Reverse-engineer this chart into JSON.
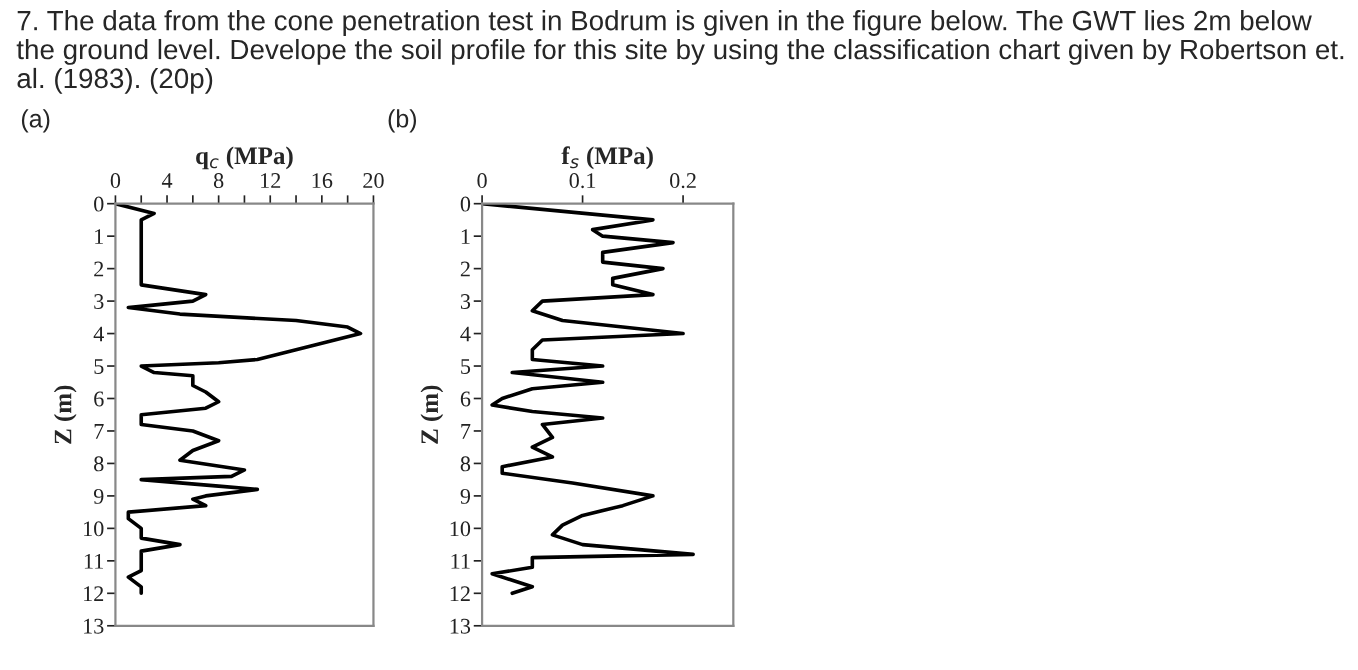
{
  "chart_data": [
    {
      "type": "line",
      "orientation": "horizontal",
      "title": "7. The data from the cone penetration test in Bodrum is given in the figure below. The GWT lies 2m below the ground level. Develope the soil profile for this site by using the classification chart given by Robertson et. al. (1983). (20p)",
      "annotations": [
        "(a)"
      ],
      "x2label": "q$_{c}$ (MPa)",
      "ylabel": "Z (m)",
      "x2lim": [
        0,
        20
      ],
      "x2ticks": [
        0,
        {
          "value": 2,
          "label": null
        },
        4,
        {
          "value": 6,
          "label": null
        },
        8,
        {
          "value": 10,
          "label": null
        },
        12,
        {
          "value": 14,
          "label": null
        },
        16,
        {
          "value": 18,
          "label": null
        },
        20
      ],
      "ylim": [
        13,
        0
      ],
      "yticks": [
        0,
        1,
        2,
        3,
        4,
        5,
        6,
        7,
        8,
        9,
        10,
        11,
        12,
        13
      ],
      "series": [
        {
          "color": "#000000",
          "axis": "x2",
          "x": [
            0,
            0.3,
            0.5,
            2.5,
            2.8,
            3.0,
            3.2,
            3.4,
            3.6,
            3.8,
            4.0,
            4.2,
            4.5,
            4.8,
            4.9,
            5.0,
            5.2,
            5.3,
            5.6,
            5.8,
            6.1,
            6.3,
            6.5,
            6.8,
            7.0,
            7.3,
            7.6,
            7.9,
            8.2,
            8.4,
            8.5,
            8.7,
            8.8,
            9.0,
            9.1,
            9.3,
            9.5,
            9.7,
            10.0,
            10.3,
            10.5,
            10.7,
            11.0,
            11.3,
            11.5,
            11.8,
            12.0
          ],
          "values": [
            0,
            3,
            2,
            2,
            7,
            6,
            1,
            5,
            14,
            18,
            19,
            17,
            14,
            11,
            8,
            2,
            3,
            6,
            6,
            7,
            8,
            7,
            2,
            2,
            6,
            8,
            6,
            5,
            10,
            9,
            2,
            8,
            11,
            7,
            6,
            7,
            1,
            1,
            2,
            2,
            5,
            2,
            2,
            2,
            1,
            2,
            2
          ]
        }
      ]
    },
    {
      "type": "line",
      "orientation": "horizontal",
      "annotations": [
        "(b)"
      ],
      "x2label": "f$_{s}$ (MPa)",
      "ylabel": "Z (m)",
      "x2lim": [
        0,
        0.25
      ],
      "x2ticks": [
        0,
        0.1,
        0.2
      ],
      "ylim": [
        13,
        0
      ],
      "yticks": [
        0,
        1,
        2,
        3,
        4,
        5,
        6,
        7,
        8,
        9,
        10,
        11,
        12,
        13
      ],
      "series": [
        {
          "color": "#000000",
          "axis": "x2",
          "x": [
            0,
            0.5,
            0.8,
            1.0,
            1.2,
            1.5,
            1.8,
            2.0,
            2.3,
            2.5,
            2.8,
            3.0,
            3.3,
            3.6,
            3.8,
            4.0,
            4.2,
            4.5,
            4.8,
            5.0,
            5.2,
            5.5,
            5.7,
            6.0,
            6.2,
            6.4,
            6.6,
            6.8,
            7.2,
            7.5,
            7.8,
            8.1,
            8.3,
            8.6,
            9.0,
            9.3,
            9.6,
            9.9,
            10.2,
            10.5,
            10.8,
            10.9,
            11.2,
            11.4,
            11.6,
            11.8,
            12.0
          ],
          "values": [
            0,
            0.17,
            0.11,
            0.12,
            0.19,
            0.12,
            0.12,
            0.18,
            0.13,
            0.13,
            0.17,
            0.06,
            0.05,
            0.08,
            0.14,
            0.2,
            0.06,
            0.05,
            0.05,
            0.12,
            0.03,
            0.12,
            0.05,
            0.02,
            0.01,
            0.05,
            0.12,
            0.06,
            0.07,
            0.05,
            0.07,
            0.02,
            0.02,
            0.09,
            0.17,
            0.14,
            0.1,
            0.08,
            0.07,
            0.1,
            0.21,
            0.05,
            0.05,
            0.01,
            0.03,
            0.05,
            0.03
          ]
        }
      ]
    }
  ]
}
